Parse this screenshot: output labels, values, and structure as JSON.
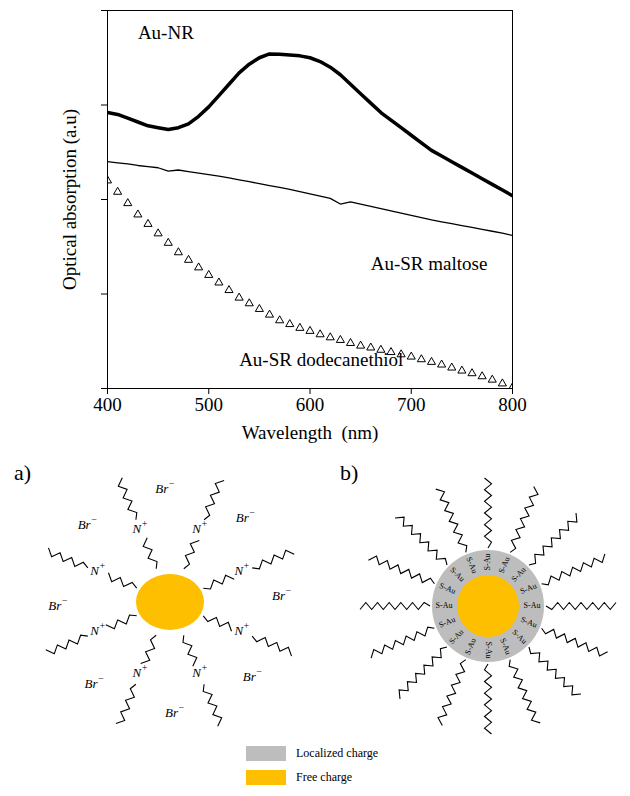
{
  "chart_data": {
    "type": "line",
    "x_label": "Wavelength  (nm)",
    "y_label": "Optical absorption (a.u)",
    "xlim": [
      400,
      800
    ],
    "xticks": [
      400,
      500,
      600,
      700,
      800
    ],
    "ylim": [
      0,
      1
    ],
    "yticks": [
      0,
      0.25,
      0.5,
      0.75,
      1
    ],
    "tick_labels": "x",
    "x": [
      400,
      410,
      420,
      430,
      440,
      450,
      460,
      470,
      480,
      490,
      500,
      510,
      520,
      530,
      540,
      550,
      560,
      570,
      580,
      590,
      600,
      610,
      620,
      630,
      640,
      650,
      660,
      670,
      680,
      690,
      700,
      710,
      720,
      730,
      740,
      750,
      760,
      770,
      780,
      790,
      800
    ],
    "series": [
      {
        "name": "Au-NR",
        "color": "#000000",
        "line_style": "bold",
        "values": [
          0.73,
          0.725,
          0.715,
          0.705,
          0.695,
          0.69,
          0.685,
          0.69,
          0.7,
          0.72,
          0.745,
          0.775,
          0.805,
          0.835,
          0.858,
          0.875,
          0.885,
          0.884,
          0.882,
          0.88,
          0.875,
          0.865,
          0.85,
          0.83,
          0.805,
          0.78,
          0.755,
          0.73,
          0.71,
          0.69,
          0.67,
          0.65,
          0.63,
          0.615,
          0.6,
          0.585,
          0.57,
          0.555,
          0.54,
          0.525,
          0.51
        ]
      },
      {
        "name": "Au-SR maltose",
        "color": "#000000",
        "line_style": "solid",
        "values": [
          0.6,
          0.597,
          0.594,
          0.59,
          0.587,
          0.584,
          0.575,
          0.578,
          0.574,
          0.57,
          0.566,
          0.562,
          0.557,
          0.552,
          0.547,
          0.542,
          0.537,
          0.532,
          0.527,
          0.521,
          0.515,
          0.509,
          0.503,
          0.488,
          0.494,
          0.488,
          0.482,
          0.476,
          0.47,
          0.464,
          0.458,
          0.452,
          0.446,
          0.441,
          0.436,
          0.431,
          0.426,
          0.421,
          0.416,
          0.411,
          0.405
        ]
      },
      {
        "name": "Au-SR dodecanethiol",
        "color": "#000000",
        "line_style": "none",
        "marker": "triangle",
        "values": [
          0.55,
          0.52,
          0.49,
          0.46,
          0.435,
          0.41,
          0.385,
          0.36,
          0.34,
          0.32,
          0.3,
          0.28,
          0.26,
          0.24,
          0.225,
          0.21,
          0.195,
          0.18,
          0.17,
          0.16,
          0.152,
          0.143,
          0.135,
          0.128,
          0.12,
          0.113,
          0.108,
          0.102,
          0.096,
          0.09,
          0.084,
          0.077,
          0.07,
          0.063,
          0.055,
          0.047,
          0.04,
          0.032,
          0.023,
          0.013,
          0.003
        ]
      }
    ]
  },
  "diagram": {
    "panels": [
      {
        "label": "a)",
        "core": "free",
        "chains": 8,
        "cation": {
          "text": "N",
          "charge": "+"
        },
        "anion": {
          "text": "Br",
          "charge": "−"
        }
      },
      {
        "label": "b)",
        "core": "free",
        "shell": "localized",
        "chains": 16,
        "bond": "S-Au"
      }
    ],
    "legend": [
      {
        "key": "localized",
        "label": "Localized charge",
        "color": "#bdbdbd"
      },
      {
        "key": "free",
        "label": "Free charge",
        "color": "#fdbf00"
      }
    ]
  }
}
